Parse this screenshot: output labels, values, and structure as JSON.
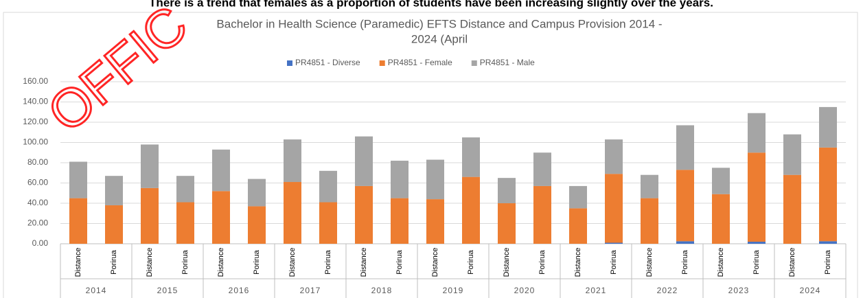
{
  "heading": "There is a trend that females as a proportion of students have been increasing slightly over the years.",
  "watermark": "OFFIC",
  "chart_data": {
    "type": "stacked_bar",
    "title_lines": [
      "Bachelor in Health Science (Paramedic) EFTS  Distance and Campus Provision  2014 -",
      "2024 (April"
    ],
    "categories": [
      "Distance",
      "Porirua",
      "Distance",
      "Porirua",
      "Distance",
      "Porirua",
      "Distance",
      "Porirua",
      "Distance",
      "Porirua",
      "Distance",
      "Porirua",
      "Distance",
      "Porirua",
      "Distance",
      "Porirua",
      "Distance",
      "Porirua",
      "Distance",
      "Porirua",
      "Distance",
      "Porirua"
    ],
    "category_groups": [
      "2014",
      "2015",
      "2016",
      "2017",
      "2018",
      "2019",
      "2020",
      "2021",
      "2022",
      "2023",
      "2024"
    ],
    "series": [
      {
        "name": "PR4851 - Diverse",
        "color": "#4472c4",
        "values": [
          0,
          0,
          0,
          0,
          0,
          0,
          0,
          0,
          0,
          0,
          0,
          0,
          0,
          0,
          0,
          1,
          0,
          2.5,
          0,
          2,
          0,
          2.5
        ]
      },
      {
        "name": "PR4851 - Female",
        "color": "#ed7d31",
        "values": [
          45,
          38,
          55,
          41,
          52,
          37,
          61,
          41,
          57,
          45,
          44,
          66,
          40,
          57,
          35,
          68,
          45,
          70.5,
          49,
          88,
          68,
          92.5
        ]
      },
      {
        "name": "PR4851 - Male",
        "color": "#a5a5a5",
        "values": [
          36,
          29,
          43,
          26,
          41,
          27,
          42,
          31,
          49,
          37,
          39,
          39,
          25,
          33,
          22,
          34,
          23,
          44,
          26,
          39,
          40,
          40
        ]
      }
    ],
    "ylim": [
      0,
      160
    ],
    "yticks": [
      {
        "value": 0,
        "label": "0.00"
      },
      {
        "value": 20,
        "label": "20.00"
      },
      {
        "value": 40,
        "label": "40.00"
      },
      {
        "value": 60,
        "label": "60.00"
      },
      {
        "value": 80,
        "label": "80.00"
      },
      {
        "value": 100,
        "label": "100.00"
      },
      {
        "value": 120,
        "label": "120.00"
      },
      {
        "value": 140,
        "label": "140.00"
      },
      {
        "value": 160,
        "label": "160.00"
      }
    ],
    "grid": true,
    "legend": "top"
  }
}
